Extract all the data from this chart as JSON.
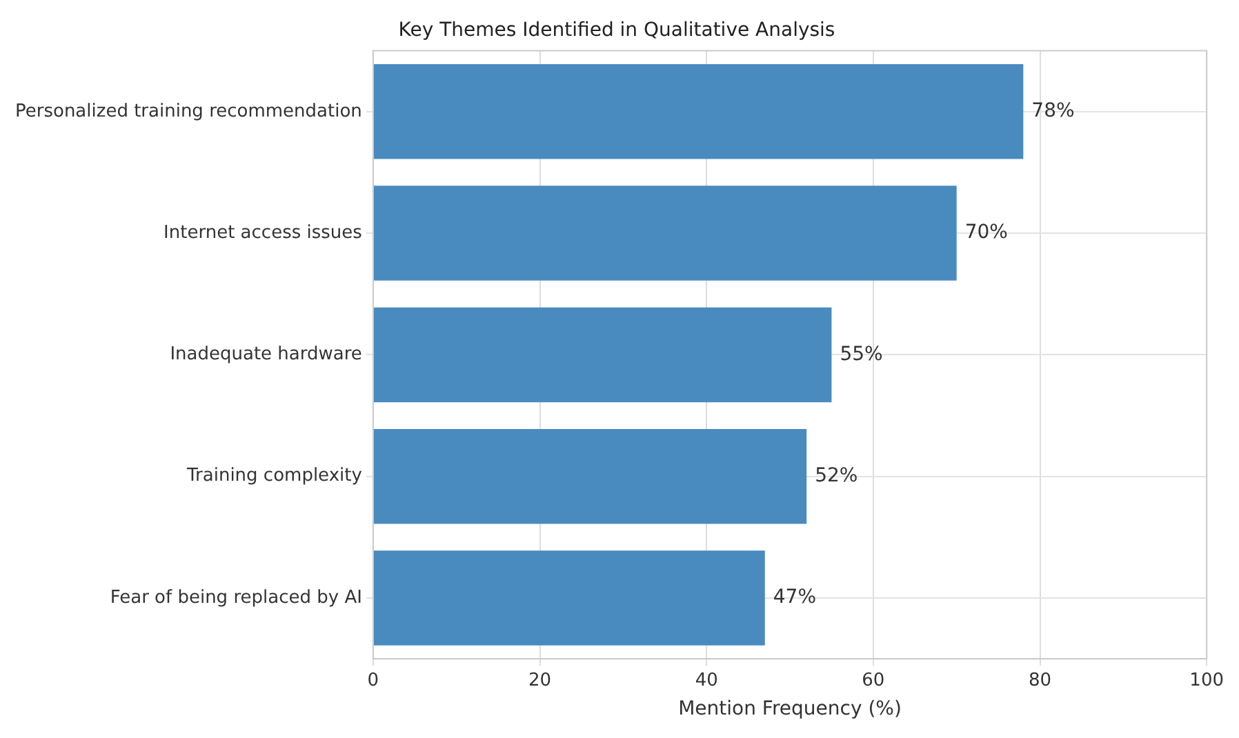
{
  "chart_data": {
    "type": "bar",
    "orientation": "horizontal",
    "title": "Key Themes Identified in Qualitative Analysis",
    "xlabel": "Mention Frequency (%)",
    "categories": [
      "Personalized training recommendation",
      "Internet access issues",
      "Inadequate hardware",
      "Training complexity",
      "Fear of being replaced by AI"
    ],
    "values": [
      78,
      70,
      55,
      52,
      47
    ],
    "color": "#4a8bbf",
    "value_labels": [
      "78%",
      "70%",
      "55%",
      "52%",
      "47%"
    ],
    "xlim": [
      0,
      100
    ],
    "xticks": [
      0,
      20,
      40,
      60,
      80,
      100
    ],
    "grid": true,
    "legend": false
  }
}
